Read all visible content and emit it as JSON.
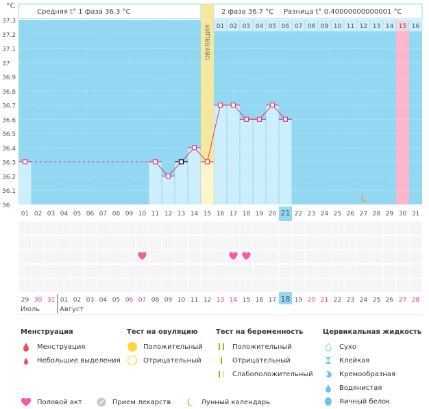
{
  "header": {
    "unit": "°C",
    "phase1_text": "Средняя t° 1 фаза 36.3 °C",
    "phase2_text": "2 фаза 36.7 °C",
    "diff_text": "Разница t° 0.40000000000001 °C",
    "ovulation_label": "ОВУЛЯЦИЯ"
  },
  "colors": {
    "chart_bg": "#92d8f2",
    "bar_fill": "#cdeefc",
    "ovulation_fill": "#f5e79a",
    "ovulation_bar": "#fdf6cc",
    "menstruation_fill": "#fbb5cb",
    "line": "#e8336b",
    "heart": "#f55aa8",
    "moon": "#f2961c",
    "today": "#92d8f2",
    "weekend": "#e8336b"
  },
  "chart_data": {
    "type": "line",
    "title": "",
    "xlabel": "",
    "ylabel": "°C",
    "ylim": [
      36,
      37.3
    ],
    "y_ticks": [
      "36",
      "36.1",
      "36.2",
      "36.3",
      "36.4",
      "36.5",
      "36.6",
      "36.7",
      "36.8",
      "36.9",
      "37",
      "37.1",
      "37.2",
      "37.3"
    ],
    "grid": true,
    "cycle_days": [
      "01",
      "02",
      "03",
      "04",
      "05",
      "06",
      "07",
      "08",
      "09",
      "10",
      "11",
      "12",
      "13",
      "14",
      "15",
      "16",
      "17",
      "18",
      "19",
      "20",
      "21",
      "22",
      "23",
      "24",
      "25",
      "26",
      "27",
      "28",
      "29",
      "30",
      "31"
    ],
    "today_cycle_day": "21",
    "temperatures": [
      {
        "day": "01",
        "value": 36.3
      },
      {
        "day": "11",
        "value": 36.3
      },
      {
        "day": "12",
        "value": 36.2
      },
      {
        "day": "13",
        "value": 36.3,
        "excluded": true
      },
      {
        "day": "14",
        "value": 36.4
      },
      {
        "day": "15",
        "value": 36.3
      },
      {
        "day": "16",
        "value": 36.7
      },
      {
        "day": "17",
        "value": 36.7
      },
      {
        "day": "18",
        "value": 36.6
      },
      {
        "day": "19",
        "value": 36.6
      },
      {
        "day": "20",
        "value": 36.7
      },
      {
        "day": "21",
        "value": 36.6
      }
    ],
    "coverline": 36.3,
    "ovulation_day": "15",
    "phase2_days": [
      "01",
      "02",
      "03",
      "04",
      "05",
      "06",
      "07",
      "08",
      "09",
      "10",
      "11",
      "12",
      "13",
      "14",
      "15",
      "16"
    ],
    "phase2_highlight_day": "15",
    "moon_day": "27",
    "intercourse_days": [
      "10",
      "17",
      "18"
    ],
    "calendar_dates": [
      {
        "d": "29",
        "weekend": false
      },
      {
        "d": "30",
        "weekend": true
      },
      {
        "d": "31",
        "weekend": true
      },
      {
        "d": "01",
        "weekend": false
      },
      {
        "d": "02",
        "weekend": false
      },
      {
        "d": "03",
        "weekend": false
      },
      {
        "d": "04",
        "weekend": false
      },
      {
        "d": "05",
        "weekend": false
      },
      {
        "d": "06",
        "weekend": true
      },
      {
        "d": "07",
        "weekend": true
      },
      {
        "d": "08",
        "weekend": false
      },
      {
        "d": "09",
        "weekend": false
      },
      {
        "d": "10",
        "weekend": false
      },
      {
        "d": "11",
        "weekend": false
      },
      {
        "d": "12",
        "weekend": false
      },
      {
        "d": "13",
        "weekend": true
      },
      {
        "d": "14",
        "weekend": true
      },
      {
        "d": "15",
        "weekend": false
      },
      {
        "d": "16",
        "weekend": false
      },
      {
        "d": "17",
        "weekend": false
      },
      {
        "d": "18",
        "weekend": false,
        "today": true
      },
      {
        "d": "19",
        "weekend": false
      },
      {
        "d": "20",
        "weekend": true
      },
      {
        "d": "21",
        "weekend": true
      },
      {
        "d": "22",
        "weekend": false
      },
      {
        "d": "23",
        "weekend": false
      },
      {
        "d": "24",
        "weekend": false
      },
      {
        "d": "25",
        "weekend": false
      },
      {
        "d": "26",
        "weekend": false
      },
      {
        "d": "27",
        "weekend": true
      },
      {
        "d": "28",
        "weekend": true
      }
    ],
    "months": [
      {
        "label": "Июль",
        "start_index": 0
      },
      {
        "label": "Август",
        "start_index": 3
      }
    ]
  },
  "legend": {
    "menstruation": {
      "title": "Менструация",
      "items": [
        "Менструация",
        "Небольшие выделения"
      ]
    },
    "ovulation_test": {
      "title": "Тест на овуляцию",
      "items": [
        "Положительный",
        "Отрицательный"
      ]
    },
    "pregnancy_test": {
      "title": "Тест на беременность",
      "items": [
        "Положительный",
        "Отрицательный",
        "Слабоположительный"
      ]
    },
    "cervical_fluid": {
      "title": "Цервикальная жидкость",
      "items": [
        "Сухо",
        "Клейкая",
        "Кремообразная",
        "Водянистая",
        "Яичный белок"
      ]
    },
    "other": [
      "Половой акт",
      "Прием лекарств",
      "Лунный календарь"
    ]
  }
}
